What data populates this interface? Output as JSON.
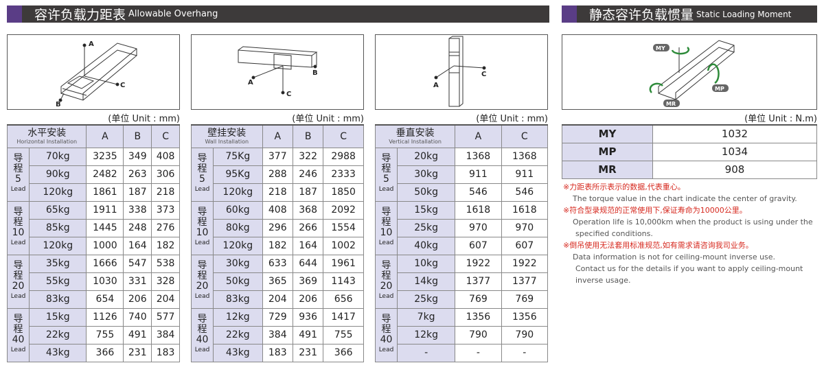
{
  "left_header": {
    "zh": "容许负载力距表",
    "en": "Allowable Overhang"
  },
  "right_header": {
    "zh": "静态容许负载惯量",
    "en": "Static Loading Moment"
  },
  "unit_mm": "(单位 Unit : mm)",
  "unit_nm": "(单位 Unit : N.m)",
  "diagram_labels": {
    "a": "A",
    "b": "B",
    "c": "C",
    "my": "MY",
    "mp": "MP",
    "mr": "MR"
  },
  "tables": [
    {
      "title": "水平安装",
      "subtitle": "Horizontal Installation",
      "cols": [
        "A",
        "B",
        "C"
      ],
      "groups": [
        {
          "label": "导\n程\n5",
          "lead": "Lead",
          "rows": [
            [
              "70kg",
              "3235",
              "349",
              "408"
            ],
            [
              "90kg",
              "2482",
              "263",
              "306"
            ],
            [
              "120kg",
              "1861",
              "187",
              "218"
            ]
          ]
        },
        {
          "label": "导\n程\n10",
          "lead": "Lead",
          "rows": [
            [
              "65kg",
              "1911",
              "338",
              "373"
            ],
            [
              "85kg",
              "1445",
              "248",
              "276"
            ],
            [
              "120kg",
              "1000",
              "164",
              "182"
            ]
          ]
        },
        {
          "label": "导\n程\n20",
          "lead": "Lead",
          "rows": [
            [
              "35kg",
              "1666",
              "547",
              "538"
            ],
            [
              "55kg",
              "1030",
              "331",
              "328"
            ],
            [
              "83kg",
              "654",
              "206",
              "204"
            ]
          ]
        },
        {
          "label": "导\n程\n40",
          "lead": "Lead",
          "rows": [
            [
              "15kg",
              "1126",
              "740",
              "577"
            ],
            [
              "22kg",
              "755",
              "491",
              "384"
            ],
            [
              "43kg",
              "366",
              "231",
              "183"
            ]
          ]
        }
      ]
    },
    {
      "title": "壁挂安装",
      "subtitle": "Wall Installation",
      "cols": [
        "A",
        "B",
        "C"
      ],
      "groups": [
        {
          "label": "导\n程\n5",
          "lead": "Lead",
          "rows": [
            [
              "75Kg",
              "377",
              "322",
              "2988"
            ],
            [
              "95Kg",
              "288",
              "246",
              "2333"
            ],
            [
              "120kg",
              "218",
              "187",
              "1850"
            ]
          ]
        },
        {
          "label": "导\n程\n10",
          "lead": "Lead",
          "rows": [
            [
              "60kg",
              "408",
              "368",
              "2092"
            ],
            [
              "80kg",
              "296",
              "266",
              "1554"
            ],
            [
              "120kg",
              "182",
              "164",
              "1002"
            ]
          ]
        },
        {
          "label": "导\n程\n20",
          "lead": "Lead",
          "rows": [
            [
              "30kg",
              "633",
              "644",
              "1961"
            ],
            [
              "50kg",
              "365",
              "369",
              "1143"
            ],
            [
              "83kg",
              "204",
              "206",
              "656"
            ]
          ]
        },
        {
          "label": "导\n程\n40",
          "lead": "Lead",
          "rows": [
            [
              "12kg",
              "729",
              "936",
              "1417"
            ],
            [
              "22kg",
              "384",
              "491",
              "755"
            ],
            [
              "43kg",
              "183",
              "231",
              "366"
            ]
          ]
        }
      ]
    },
    {
      "title": "垂直安装",
      "subtitle": "Vertical Installation",
      "cols": [
        "A",
        "C"
      ],
      "groups": [
        {
          "label": "导\n程\n5",
          "lead": "Lead",
          "rows": [
            [
              "20kg",
              "1368",
              "1368"
            ],
            [
              "30kg",
              "911",
              "911"
            ],
            [
              "50kg",
              "546",
              "546"
            ]
          ]
        },
        {
          "label": "导\n程\n10",
          "lead": "Lead",
          "rows": [
            [
              "15kg",
              "1618",
              "1618"
            ],
            [
              "25kg",
              "970",
              "970"
            ],
            [
              "40kg",
              "607",
              "607"
            ]
          ]
        },
        {
          "label": "导\n程\n20",
          "lead": "Lead",
          "rows": [
            [
              "10kg",
              "1922",
              "1922"
            ],
            [
              "14kg",
              "1377",
              "1377"
            ],
            [
              "25kg",
              "769",
              "769"
            ]
          ]
        },
        {
          "label": "导\n程\n40",
          "lead": "Lead",
          "rows": [
            [
              "7kg",
              "1356",
              "1356"
            ],
            [
              "12kg",
              "790",
              "790"
            ],
            [
              "-",
              "-",
              "-"
            ]
          ]
        }
      ]
    }
  ],
  "moments": [
    {
      "k": "MY",
      "v": "1032"
    },
    {
      "k": "MP",
      "v": "1034"
    },
    {
      "k": "MR",
      "v": "908"
    }
  ],
  "notes": [
    {
      "zh": "※力距表所示表示的数据,代表重心。",
      "en": [
        "The torque value in the chart indicate the center of gravity."
      ]
    },
    {
      "zh": "※符合型录规范的正常使用下,保证寿命为10000公里。",
      "en": [
        "Operation life is 10,000km when the product is using under the",
        "specified conditions."
      ]
    },
    {
      "zh": "※倒吊使用无法套用标准规范,如有需求请咨询我司业务。",
      "en": [
        "Data information is not for ceiling-mount inverse use.",
        "Contact us for the details if you want to apply ceiling-mount",
        "inverse usage."
      ]
    }
  ],
  "colors": {
    "header_bar": "#3d3a3a",
    "accent": "#5a3d86",
    "cell_fill": "#dcdcef",
    "note_red": "#d6281e",
    "arrow_green": "#2e8b3a"
  }
}
